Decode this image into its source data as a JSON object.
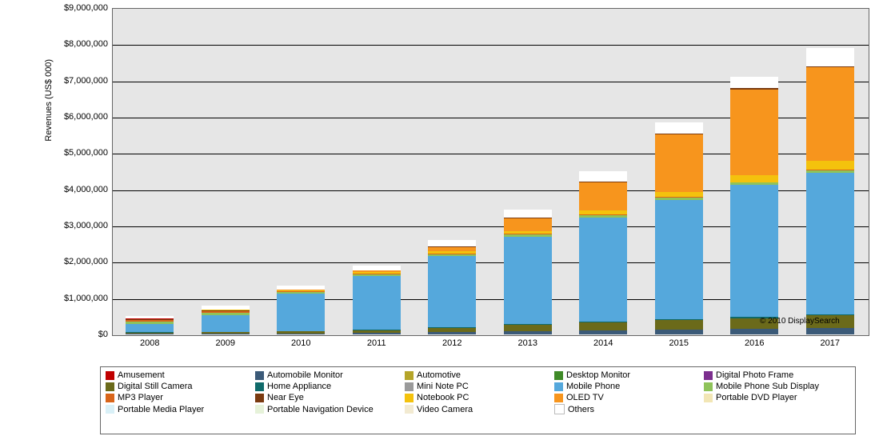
{
  "chart": {
    "type": "stacked-bar",
    "ylabel": "Revenues (US$ 000)",
    "ylim": [
      0,
      9000000
    ],
    "ytick_step": 1000000,
    "yticks": [
      0,
      1000000,
      2000000,
      3000000,
      4000000,
      5000000,
      6000000,
      7000000,
      8000000,
      9000000
    ],
    "ytick_labels": [
      "$0",
      "$1,000,000",
      "$2,000,000",
      "$3,000,000",
      "$4,000,000",
      "$5,000,000",
      "$6,000,000",
      "$7,000,000",
      "$8,000,000",
      "$9,000,000"
    ],
    "plot_bg": "#e6e6e6",
    "grid_color": "#000000",
    "credit": "© 2010 DisplaySearch",
    "bar_width": 0.63,
    "x_labels": [
      "2008",
      "2009",
      "2010",
      "2011",
      "2012",
      "2013",
      "2014",
      "2015",
      "2016",
      "2017"
    ],
    "series": [
      {
        "name": "Amusement",
        "color": "#c00000"
      },
      {
        "name": "Automobile Monitor",
        "color": "#3b5a78"
      },
      {
        "name": "Automotive",
        "color": "#b5a52a"
      },
      {
        "name": "Desktop Monitor",
        "color": "#3f8a28"
      },
      {
        "name": "Digital Photo Frame",
        "color": "#7c2f8e"
      },
      {
        "name": "Digital Still Camera",
        "color": "#6b6a1a"
      },
      {
        "name": "Home Appliance",
        "color": "#0f6a6a"
      },
      {
        "name": "Mini Note PC",
        "color": "#9a9a9a"
      },
      {
        "name": "Mobile Phone",
        "color": "#55a8dc"
      },
      {
        "name": "Mobile Phone Sub Display",
        "color": "#8fc35a"
      },
      {
        "name": "MP3 Player",
        "color": "#d9651a"
      },
      {
        "name": "Near Eye",
        "color": "#7a3a10"
      },
      {
        "name": "Notebook PC",
        "color": "#f4c20d"
      },
      {
        "name": "OLED TV",
        "color": "#f7951d"
      },
      {
        "name": "Portable DVD Player",
        "color": "#f2e6b5"
      },
      {
        "name": "Portable Media Player",
        "color": "#d9f0f7"
      },
      {
        "name": "Portable Navigation Device",
        "color": "#e6f2d9"
      },
      {
        "name": "Video Camera",
        "color": "#f2ead1"
      },
      {
        "name": "Others",
        "color": "#ffffff"
      }
    ],
    "data": [
      {
        "x": "2008",
        "stacks": [
          {
            "s": "Automobile Monitor",
            "v": 15000
          },
          {
            "s": "Digital Still Camera",
            "v": 35000
          },
          {
            "s": "Home Appliance",
            "v": 8000
          },
          {
            "s": "Mobile Phone",
            "v": 230000
          },
          {
            "s": "Mobile Phone Sub Display",
            "v": 60000
          },
          {
            "s": "MP3 Player",
            "v": 55000
          },
          {
            "s": "Near Eye",
            "v": 25000
          },
          {
            "s": "Amusement",
            "v": 20000
          },
          {
            "s": "Others",
            "v": 52000
          }
        ]
      },
      {
        "x": "2009",
        "stacks": [
          {
            "s": "Automobile Monitor",
            "v": 20000
          },
          {
            "s": "Digital Still Camera",
            "v": 45000
          },
          {
            "s": "Home Appliance",
            "v": 10000
          },
          {
            "s": "Mobile Phone",
            "v": 460000
          },
          {
            "s": "Mobile Phone Sub Display",
            "v": 60000
          },
          {
            "s": "MP3 Player",
            "v": 45000
          },
          {
            "s": "Near Eye",
            "v": 25000
          },
          {
            "s": "Notebook PC",
            "v": 15000
          },
          {
            "s": "Amusement",
            "v": 15000
          },
          {
            "s": "Others",
            "v": 105000
          }
        ]
      },
      {
        "x": "2010",
        "stacks": [
          {
            "s": "Automobile Monitor",
            "v": 30000
          },
          {
            "s": "Digital Still Camera",
            "v": 55000
          },
          {
            "s": "Home Appliance",
            "v": 12000
          },
          {
            "s": "Mobile Phone",
            "v": 1020000
          },
          {
            "s": "Mobile Phone Sub Display",
            "v": 55000
          },
          {
            "s": "MP3 Player",
            "v": 28000
          },
          {
            "s": "Notebook PC",
            "v": 25000
          },
          {
            "s": "OLED TV",
            "v": 10000
          },
          {
            "s": "Others",
            "v": 115000
          }
        ]
      },
      {
        "x": "2011",
        "stacks": [
          {
            "s": "Automobile Monitor",
            "v": 45000
          },
          {
            "s": "Digital Still Camera",
            "v": 70000
          },
          {
            "s": "Home Appliance",
            "v": 15000
          },
          {
            "s": "Mobile Phone",
            "v": 1480000
          },
          {
            "s": "Mobile Phone Sub Display",
            "v": 50000
          },
          {
            "s": "MP3 Player",
            "v": 25000
          },
          {
            "s": "Notebook PC",
            "v": 40000
          },
          {
            "s": "OLED TV",
            "v": 30000
          },
          {
            "s": "Near Eye",
            "v": 15000
          },
          {
            "s": "Others",
            "v": 130000
          }
        ]
      },
      {
        "x": "2012",
        "stacks": [
          {
            "s": "Automobile Monitor",
            "v": 65000
          },
          {
            "s": "Digital Still Camera",
            "v": 120000
          },
          {
            "s": "Home Appliance",
            "v": 18000
          },
          {
            "s": "Mobile Phone",
            "v": 1950000
          },
          {
            "s": "Mobile Phone Sub Display",
            "v": 55000
          },
          {
            "s": "MP3 Player",
            "v": 20000
          },
          {
            "s": "Notebook PC",
            "v": 60000
          },
          {
            "s": "OLED TV",
            "v": 120000
          },
          {
            "s": "Near Eye",
            "v": 25000
          },
          {
            "s": "Others",
            "v": 167000
          }
        ]
      },
      {
        "x": "2013",
        "stacks": [
          {
            "s": "Automobile Monitor",
            "v": 90000
          },
          {
            "s": "Digital Still Camera",
            "v": 170000
          },
          {
            "s": "Home Appliance",
            "v": 20000
          },
          {
            "s": "Mobile Phone",
            "v": 2420000
          },
          {
            "s": "Mobile Phone Sub Display",
            "v": 55000
          },
          {
            "s": "MP3 Player",
            "v": 18000
          },
          {
            "s": "Notebook PC",
            "v": 80000
          },
          {
            "s": "OLED TV",
            "v": 350000
          },
          {
            "s": "Near Eye",
            "v": 25000
          },
          {
            "s": "Others",
            "v": 222000
          }
        ]
      },
      {
        "x": "2014",
        "stacks": [
          {
            "s": "Automobile Monitor",
            "v": 110000
          },
          {
            "s": "Digital Still Camera",
            "v": 220000
          },
          {
            "s": "Home Appliance",
            "v": 22000
          },
          {
            "s": "Mobile Phone",
            "v": 2880000
          },
          {
            "s": "Mobile Phone Sub Display",
            "v": 60000
          },
          {
            "s": "MP3 Player",
            "v": 15000
          },
          {
            "s": "Notebook PC",
            "v": 110000
          },
          {
            "s": "OLED TV",
            "v": 780000
          },
          {
            "s": "Near Eye",
            "v": 25000
          },
          {
            "s": "Others",
            "v": 278000
          }
        ]
      },
      {
        "x": "2015",
        "stacks": [
          {
            "s": "Automobile Monitor",
            "v": 130000
          },
          {
            "s": "Digital Still Camera",
            "v": 260000
          },
          {
            "s": "Home Appliance",
            "v": 25000
          },
          {
            "s": "Mobile Phone",
            "v": 3300000
          },
          {
            "s": "Mobile Phone Sub Display",
            "v": 65000
          },
          {
            "s": "MP3 Player",
            "v": 15000
          },
          {
            "s": "Notebook PC",
            "v": 140000
          },
          {
            "s": "OLED TV",
            "v": 1580000
          },
          {
            "s": "Near Eye",
            "v": 25000
          },
          {
            "s": "Others",
            "v": 310000
          }
        ]
      },
      {
        "x": "2016",
        "stacks": [
          {
            "s": "Automobile Monitor",
            "v": 150000
          },
          {
            "s": "Digital Still Camera",
            "v": 300000
          },
          {
            "s": "Home Appliance",
            "v": 28000
          },
          {
            "s": "Mobile Phone",
            "v": 3640000
          },
          {
            "s": "Mobile Phone Sub Display",
            "v": 70000
          },
          {
            "s": "MP3 Player",
            "v": 12000
          },
          {
            "s": "Notebook PC",
            "v": 180000
          },
          {
            "s": "OLED TV",
            "v": 2380000
          },
          {
            "s": "Near Eye",
            "v": 25000
          },
          {
            "s": "Others",
            "v": 315000
          }
        ]
      },
      {
        "x": "2017",
        "stacks": [
          {
            "s": "Automobile Monitor",
            "v": 180000
          },
          {
            "s": "Digital Still Camera",
            "v": 340000
          },
          {
            "s": "Home Appliance",
            "v": 30000
          },
          {
            "s": "Mobile Phone",
            "v": 3900000
          },
          {
            "s": "Mobile Phone Sub Display",
            "v": 75000
          },
          {
            "s": "MP3 Player",
            "v": 10000
          },
          {
            "s": "Notebook PC",
            "v": 260000
          },
          {
            "s": "OLED TV",
            "v": 2570000
          },
          {
            "s": "Near Eye",
            "v": 25000
          },
          {
            "s": "Others",
            "v": 510000
          }
        ]
      }
    ]
  }
}
